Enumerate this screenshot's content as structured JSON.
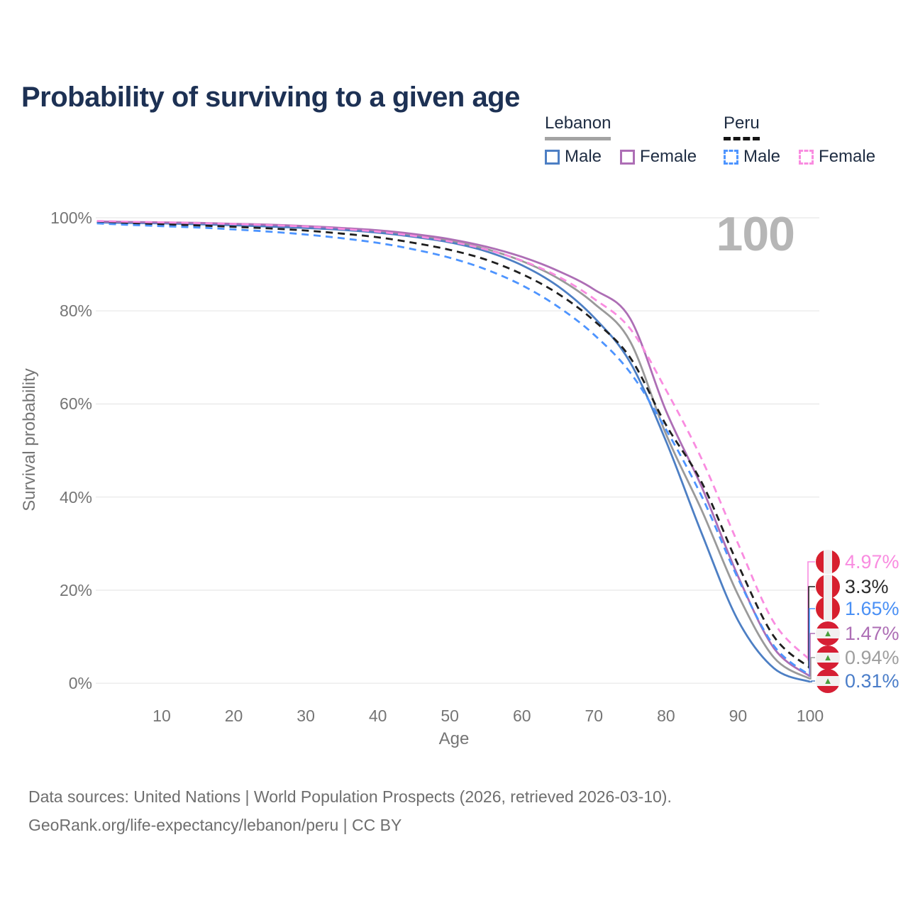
{
  "title": "Probability of surviving to a given age",
  "watermark_age": "100",
  "legend": {
    "lebanon": {
      "label": "Lebanon",
      "male_label": "Male",
      "female_label": "Female"
    },
    "peru": {
      "label": "Peru",
      "male_label": "Male",
      "female_label": "Female"
    }
  },
  "chart_data": {
    "type": "line",
    "title": "Probability of surviving to a given age",
    "xlabel": "Age",
    "ylabel": "Survival probability",
    "xlim": [
      0,
      100
    ],
    "ylim": [
      0,
      100
    ],
    "grid": true,
    "legend_position": "top-right",
    "x_ticks": [
      10,
      20,
      30,
      40,
      50,
      60,
      70,
      80,
      90,
      100
    ],
    "y_ticks": [
      {
        "label": "100%",
        "value": 100
      },
      {
        "label": "80%",
        "value": 80
      },
      {
        "label": "60%",
        "value": 60
      },
      {
        "label": "40%",
        "value": 40
      },
      {
        "label": "20%",
        "value": 20
      },
      {
        "label": "0%",
        "value": 0
      }
    ],
    "x": [
      1,
      5,
      10,
      15,
      20,
      25,
      30,
      35,
      40,
      45,
      50,
      55,
      60,
      65,
      70,
      75,
      80,
      85,
      90,
      95,
      100
    ],
    "series": [
      {
        "name": "Lebanon Total",
        "country": "Lebanon",
        "group": "total",
        "color": "#9a9a9a",
        "style": "solid",
        "flag": "lebanon",
        "end_label": "0.94%",
        "end_value": 0.94,
        "values": [
          99.1,
          99.0,
          98.9,
          98.75,
          98.55,
          98.3,
          98.0,
          97.6,
          97.05,
          96.2,
          95.05,
          93.3,
          90.7,
          87.0,
          81.6,
          73.5,
          53.5,
          37.0,
          19.0,
          5.5,
          0.94
        ]
      },
      {
        "name": "Lebanon Male",
        "country": "Lebanon",
        "group": "male",
        "color": "#4d7fc4",
        "style": "solid",
        "flag": "lebanon",
        "end_label": "0.31%",
        "end_value": 0.31,
        "values": [
          99.0,
          98.9,
          98.8,
          98.6,
          98.4,
          98.1,
          97.8,
          97.4,
          96.8,
          95.9,
          94.7,
          92.8,
          89.8,
          85.3,
          78.6,
          69.0,
          52.0,
          32.0,
          13.5,
          3.2,
          0.31
        ]
      },
      {
        "name": "Lebanon Female",
        "country": "Lebanon",
        "group": "female",
        "color": "#ad6eb5",
        "style": "solid",
        "flag": "lebanon",
        "end_label": "1.47%",
        "end_value": 1.47,
        "values": [
          99.2,
          99.1,
          99.0,
          98.9,
          98.7,
          98.5,
          98.2,
          97.8,
          97.3,
          96.5,
          95.4,
          93.8,
          91.6,
          88.6,
          84.6,
          78.4,
          58.5,
          42.0,
          23.0,
          7.5,
          1.47
        ]
      },
      {
        "name": "Peru Total",
        "country": "Peru",
        "group": "total",
        "color": "#1f1f1f",
        "style": "dashed",
        "flag": "peru",
        "end_label": "3.3%",
        "end_value": 3.3,
        "values": [
          99.0,
          98.8,
          98.6,
          98.35,
          98.05,
          97.7,
          97.25,
          96.6,
          95.8,
          94.6,
          93.1,
          91.0,
          87.9,
          83.7,
          77.9,
          70.0,
          55.5,
          43.0,
          25.5,
          10.0,
          3.3
        ]
      },
      {
        "name": "Peru Male",
        "country": "Peru",
        "group": "male",
        "color": "#4d94ff",
        "style": "dashed",
        "flag": "peru",
        "end_label": "1.65%",
        "end_value": 1.65,
        "values": [
          98.8,
          98.5,
          98.2,
          97.9,
          97.5,
          97.0,
          96.4,
          95.6,
          94.6,
          93.2,
          91.4,
          88.9,
          85.5,
          80.9,
          74.9,
          66.8,
          54.5,
          40.0,
          22.5,
          8.0,
          1.65
        ]
      },
      {
        "name": "Peru Female",
        "country": "Peru",
        "group": "female",
        "color": "#f98ce0",
        "style": "dashed",
        "flag": "peru",
        "end_label": "4.97%",
        "end_value": 4.97,
        "values": [
          99.3,
          99.15,
          99.0,
          98.85,
          98.65,
          98.4,
          98.1,
          97.6,
          97.0,
          96.1,
          94.9,
          93.2,
          90.8,
          87.4,
          82.6,
          76.2,
          63.0,
          48.0,
          30.0,
          13.0,
          4.97
        ]
      }
    ],
    "end_label_text_colors": {
      "Peru Female": "#f98ce0",
      "Peru Total": "#2b2b2b",
      "Peru Male": "#4a90f5",
      "Lebanon Female": "#ad6eb5",
      "Lebanon Total": "#9e9e9e",
      "Lebanon Male": "#4a7dc9"
    }
  },
  "footer": {
    "line1": "Data sources: United Nations | World Population Prospects (2026, retrieved 2026-03-10).",
    "line2": "GeoRank.org/life-expectancy/lebanon/peru | CC BY"
  }
}
